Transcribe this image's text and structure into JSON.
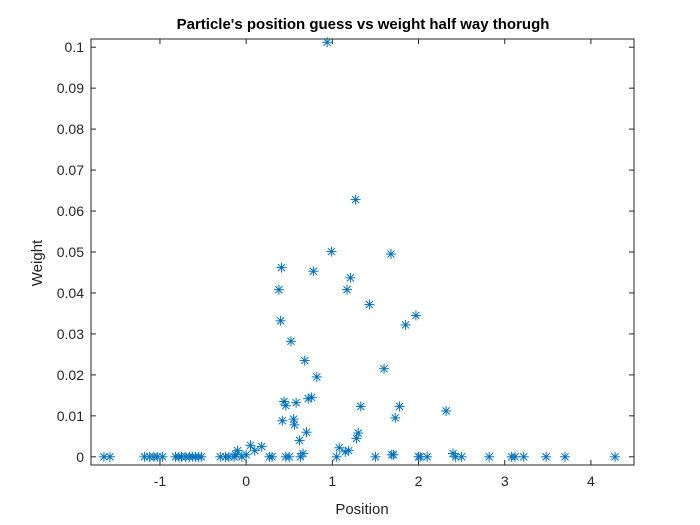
{
  "chart_data": {
    "type": "scatter",
    "title": "Particle's position guess vs weight half way thorugh",
    "xlabel": "Position",
    "ylabel": "Weight",
    "xlim": [
      -1.8,
      4.5
    ],
    "ylim": [
      -0.002,
      0.102
    ],
    "xticks": [
      -1,
      0,
      1,
      2,
      3,
      4
    ],
    "xtick_labels": [
      "-1",
      "0",
      "1",
      "2",
      "3",
      "4"
    ],
    "yticks": [
      0,
      0.01,
      0.02,
      0.03,
      0.04,
      0.05,
      0.06,
      0.07,
      0.08,
      0.09,
      0.1
    ],
    "ytick_labels": [
      "0",
      "0.01",
      "0.02",
      "0.03",
      "0.04",
      "0.05",
      "0.06",
      "0.07",
      "0.08",
      "0.09",
      "0.1"
    ],
    "grid": false,
    "marker": "asterisk",
    "marker_color": "#0072BD",
    "axis_color": "#262626",
    "points": [
      {
        "x": -1.65,
        "y": 0
      },
      {
        "x": -1.58,
        "y": 0
      },
      {
        "x": -1.18,
        "y": 0
      },
      {
        "x": -1.12,
        "y": 0
      },
      {
        "x": -1.07,
        "y": 0
      },
      {
        "x": -1.03,
        "y": 0
      },
      {
        "x": -0.97,
        "y": 0
      },
      {
        "x": -0.82,
        "y": 0
      },
      {
        "x": -0.78,
        "y": 0
      },
      {
        "x": -0.75,
        "y": 0
      },
      {
        "x": -0.7,
        "y": 0
      },
      {
        "x": -0.66,
        "y": 0
      },
      {
        "x": -0.62,
        "y": 0
      },
      {
        "x": -0.59,
        "y": 0
      },
      {
        "x": -0.55,
        "y": 0
      },
      {
        "x": -0.52,
        "y": 0
      },
      {
        "x": -0.3,
        "y": 0
      },
      {
        "x": -0.24,
        "y": 0
      },
      {
        "x": -0.2,
        "y": 0
      },
      {
        "x": -0.14,
        "y": 0
      },
      {
        "x": -0.12,
        "y": 0.0005
      },
      {
        "x": -0.1,
        "y": 0.0015
      },
      {
        "x": -0.05,
        "y": 0
      },
      {
        "x": 0.0,
        "y": 0.0005
      },
      {
        "x": 0.05,
        "y": 0.0028
      },
      {
        "x": 0.1,
        "y": 0.0015
      },
      {
        "x": 0.18,
        "y": 0.0025
      },
      {
        "x": 0.27,
        "y": 0
      },
      {
        "x": 0.3,
        "y": 0
      },
      {
        "x": 0.38,
        "y": 0.0408
      },
      {
        "x": 0.41,
        "y": 0.0462
      },
      {
        "x": 0.4,
        "y": 0.0332
      },
      {
        "x": 0.42,
        "y": 0.0088
      },
      {
        "x": 0.44,
        "y": 0.0135
      },
      {
        "x": 0.46,
        "y": 0.0125
      },
      {
        "x": 0.46,
        "y": 0
      },
      {
        "x": 0.5,
        "y": 0
      },
      {
        "x": 0.52,
        "y": 0.0282
      },
      {
        "x": 0.55,
        "y": 0.0092
      },
      {
        "x": 0.56,
        "y": 0.0078
      },
      {
        "x": 0.58,
        "y": 0.0132
      },
      {
        "x": 0.62,
        "y": 0.004
      },
      {
        "x": 0.63,
        "y": 0
      },
      {
        "x": 0.66,
        "y": 0.0008
      },
      {
        "x": 0.68,
        "y": 0.0235
      },
      {
        "x": 0.7,
        "y": 0.006
      },
      {
        "x": 0.72,
        "y": 0.0142
      },
      {
        "x": 0.76,
        "y": 0.0145
      },
      {
        "x": 0.78,
        "y": 0.0453
      },
      {
        "x": 0.82,
        "y": 0.0195
      },
      {
        "x": 0.94,
        "y": 0.1012
      },
      {
        "x": 0.99,
        "y": 0.0501
      },
      {
        "x": 1.05,
        "y": 0
      },
      {
        "x": 1.08,
        "y": 0.0022
      },
      {
        "x": 1.15,
        "y": 0.0012
      },
      {
        "x": 1.17,
        "y": 0.0408
      },
      {
        "x": 1.19,
        "y": 0.0015
      },
      {
        "x": 1.21,
        "y": 0.0437
      },
      {
        "x": 1.27,
        "y": 0.0628
      },
      {
        "x": 1.28,
        "y": 0.0045
      },
      {
        "x": 1.3,
        "y": 0.0058
      },
      {
        "x": 1.33,
        "y": 0.0123
      },
      {
        "x": 1.43,
        "y": 0.0372
      },
      {
        "x": 1.5,
        "y": 0
      },
      {
        "x": 1.6,
        "y": 0.0215
      },
      {
        "x": 1.68,
        "y": 0.0495
      },
      {
        "x": 1.69,
        "y": 0.0005
      },
      {
        "x": 1.71,
        "y": 0.0005
      },
      {
        "x": 1.73,
        "y": 0.0095
      },
      {
        "x": 1.78,
        "y": 0.0123
      },
      {
        "x": 1.85,
        "y": 0.0322
      },
      {
        "x": 1.97,
        "y": 0.0345
      },
      {
        "x": 2.0,
        "y": 0
      },
      {
        "x": 2.02,
        "y": 0
      },
      {
        "x": 2.1,
        "y": 0
      },
      {
        "x": 2.32,
        "y": 0.0112
      },
      {
        "x": 2.4,
        "y": 0.0008
      },
      {
        "x": 2.43,
        "y": 0
      },
      {
        "x": 2.5,
        "y": 0
      },
      {
        "x": 2.82,
        "y": 0
      },
      {
        "x": 3.08,
        "y": 0
      },
      {
        "x": 3.12,
        "y": 0
      },
      {
        "x": 3.22,
        "y": 0
      },
      {
        "x": 3.48,
        "y": 0
      },
      {
        "x": 3.7,
        "y": 0
      },
      {
        "x": 4.28,
        "y": 0
      }
    ]
  }
}
